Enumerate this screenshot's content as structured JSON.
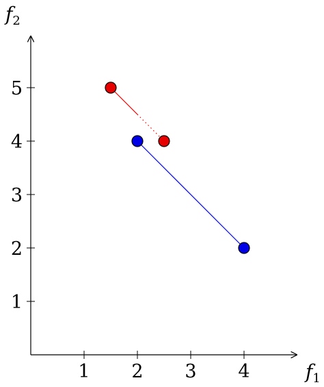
{
  "chart_data": {
    "type": "scatter",
    "xlabel": "f",
    "xlabel_sub": "1",
    "ylabel": "f",
    "ylabel_sub": "2",
    "xlim": [
      0,
      5
    ],
    "ylim": [
      0,
      6
    ],
    "xticks": [
      1,
      2,
      3,
      4
    ],
    "yticks": [
      1,
      2,
      3,
      4,
      5
    ],
    "grid": false,
    "series": [
      {
        "color": "#e60000",
        "points": [
          {
            "x": 1.5,
            "y": 5
          },
          {
            "x": 2.5,
            "y": 4
          }
        ],
        "line_style": "solid-then-dotted",
        "dash_split": 0.5
      },
      {
        "color": "#0000e6",
        "points": [
          {
            "x": 2,
            "y": 4
          },
          {
            "x": 4,
            "y": 2
          }
        ],
        "line_style": "solid"
      }
    ]
  }
}
